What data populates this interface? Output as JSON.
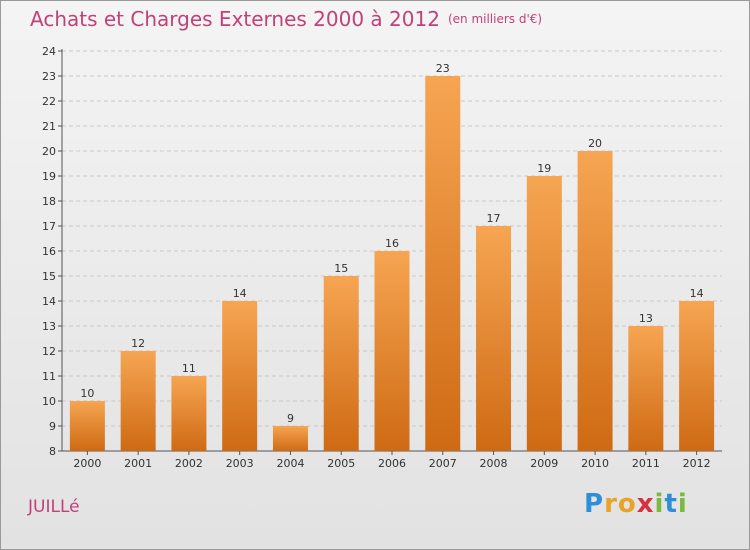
{
  "title": "Achats et Charges Externes 2000 à 2012",
  "subtitle": "(en milliers d'€)",
  "commune": "JUILLé",
  "logo": {
    "letters": [
      "P",
      "r",
      "o",
      "x",
      "i",
      "t",
      "i"
    ],
    "colors": [
      "#2e8fd8",
      "#e8a32a",
      "#e8a32a",
      "#d6313e",
      "#7cb940",
      "#2e8fd8",
      "#7cb940"
    ]
  },
  "colors": {
    "bar_top": "#f6a552",
    "bar_bottom": "#cf6a14",
    "title": "#c1417b"
  },
  "chart_data": {
    "type": "bar",
    "title": "Achats et Charges Externes 2000 à 2012",
    "subtitle": "(en milliers d'€)",
    "xlabel": "",
    "ylabel": "",
    "categories": [
      "2000",
      "2001",
      "2002",
      "2003",
      "2004",
      "2005",
      "2006",
      "2007",
      "2008",
      "2009",
      "2010",
      "2011",
      "2012"
    ],
    "values": [
      10,
      12,
      11,
      14,
      9,
      15,
      16,
      23,
      17,
      19,
      20,
      13,
      14
    ],
    "ylim": [
      8,
      24
    ],
    "yticks": [
      8,
      9,
      10,
      11,
      12,
      13,
      14,
      15,
      16,
      17,
      18,
      19,
      20,
      21,
      22,
      23,
      24
    ],
    "grid": true
  }
}
